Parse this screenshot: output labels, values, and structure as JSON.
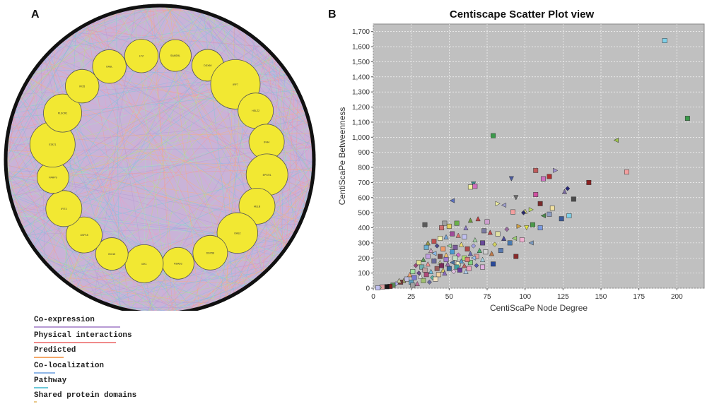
{
  "panels": {
    "a": "A",
    "b": "B"
  },
  "network": {
    "node_fill": "#f2e832",
    "edge_background": "#c9b3d8",
    "ring_color": "#111111",
    "edge_palette": [
      "#b79ad4",
      "#f19a9a",
      "#f4b27a",
      "#8fb6e8",
      "#7cc8d8",
      "#b8d98c",
      "#e8a0c8",
      "#a8e0c0"
    ],
    "genes": [
      {
        "label": "LYZ",
        "rel_size": 0.55
      },
      {
        "label": "SAMD9L",
        "rel_size": 0.5
      },
      {
        "label": "DDX60",
        "rel_size": 0.5
      },
      {
        "label": "IRF7",
        "rel_size": 1.0
      },
      {
        "label": "HELZ2",
        "rel_size": 0.6
      },
      {
        "label": "IFI44",
        "rel_size": 0.6
      },
      {
        "label": "EPSTI1",
        "rel_size": 0.78
      },
      {
        "label": "HELB",
        "rel_size": 0.62
      },
      {
        "label": "OAS2",
        "rel_size": 0.75
      },
      {
        "label": "DDX58",
        "rel_size": 0.58
      },
      {
        "label": "RSAD2",
        "rel_size": 0.5
      },
      {
        "label": "MX1",
        "rel_size": 0.68
      },
      {
        "label": "ISG15",
        "rel_size": 0.52
      },
      {
        "label": "USP18",
        "rel_size": 0.62
      },
      {
        "label": "IFIT3",
        "rel_size": 0.62
      },
      {
        "label": "PARP9",
        "rel_size": 0.5
      },
      {
        "label": "STAT1",
        "rel_size": 0.88
      },
      {
        "label": "PLSCR1",
        "rel_size": 0.68
      },
      {
        "label": "IFI35",
        "rel_size": 0.55
      },
      {
        "label": "OASL",
        "rel_size": 0.55
      }
    ]
  },
  "legend": [
    {
      "label": "Co-expression",
      "color": "#b79ad4"
    },
    {
      "label": "Physical interactions",
      "color": "#f08a8a"
    },
    {
      "label": "Predicted",
      "color": "#f4a868"
    },
    {
      "label": "Co-localization",
      "color": "#8fb6e8"
    },
    {
      "label": "Pathway",
      "color": "#6cc8d8"
    },
    {
      "label": "Shared protein domains",
      "color": "#e8c88a"
    }
  ],
  "chart_data": {
    "type": "scatter",
    "title": "Centiscape Scatter Plot view",
    "xlabel": "CentiScaPe Node Degree",
    "ylabel": "CentiScaPe Betweenness",
    "xlim": [
      0,
      218
    ],
    "ylim": [
      0,
      1750
    ],
    "xticks": [
      0,
      25,
      50,
      75,
      100,
      125,
      150,
      175,
      200
    ],
    "yticks": [
      0,
      100,
      200,
      300,
      400,
      500,
      600,
      700,
      800,
      900,
      1000,
      1100,
      1200,
      1300,
      1400,
      1500,
      1600,
      1700
    ],
    "xtick_labels": [
      "0",
      "25",
      "50",
      "75",
      "100",
      "125",
      "150",
      "175",
      "200"
    ],
    "ytick_labels": [
      "0",
      "100",
      "200",
      "300",
      "400",
      "500",
      "600",
      "700",
      "800",
      "900",
      "1,000",
      "1,100",
      "1,200",
      "1,300",
      "1,400",
      "1,500",
      "1,600",
      "1,700"
    ],
    "background": "#c0c0c0",
    "grid": true,
    "points": [
      {
        "x": 192,
        "y": 1640,
        "m": "s",
        "c": "#7fd0e8"
      },
      {
        "x": 207,
        "y": 1125,
        "m": "s",
        "c": "#3a9a4a"
      },
      {
        "x": 79,
        "y": 1010,
        "m": "s",
        "c": "#3a9a4a"
      },
      {
        "x": 160,
        "y": 980,
        "m": "tl",
        "c": "#9ac04a"
      },
      {
        "x": 167,
        "y": 770,
        "m": "s",
        "c": "#f4a0a0"
      },
      {
        "x": 107,
        "y": 780,
        "m": "s",
        "c": "#c05a5a"
      },
      {
        "x": 120,
        "y": 780,
        "m": "tr",
        "c": "#a090d0"
      },
      {
        "x": 112,
        "y": 725,
        "m": "s",
        "c": "#d070c0"
      },
      {
        "x": 91,
        "y": 725,
        "m": "td",
        "c": "#4a5aa0"
      },
      {
        "x": 116,
        "y": 740,
        "m": "s",
        "c": "#b03030"
      },
      {
        "x": 142,
        "y": 700,
        "m": "s",
        "c": "#8a2020"
      },
      {
        "x": 66,
        "y": 690,
        "m": "td",
        "c": "#3a8a8a"
      },
      {
        "x": 64,
        "y": 670,
        "m": "s",
        "c": "#f0f0a0"
      },
      {
        "x": 67,
        "y": 675,
        "m": "s",
        "c": "#d070c0"
      },
      {
        "x": 128,
        "y": 660,
        "m": "d",
        "c": "#2a2a7a"
      },
      {
        "x": 126,
        "y": 640,
        "m": "tu",
        "c": "#7a6aa0"
      },
      {
        "x": 107,
        "y": 620,
        "m": "s",
        "c": "#d050a0"
      },
      {
        "x": 94,
        "y": 600,
        "m": "td",
        "c": "#6a6a6a"
      },
      {
        "x": 132,
        "y": 590,
        "m": "s",
        "c": "#4a4a4a"
      },
      {
        "x": 52,
        "y": 580,
        "m": "tl",
        "c": "#5a70c0"
      },
      {
        "x": 82,
        "y": 560,
        "m": "tr",
        "c": "#f0f0a0"
      },
      {
        "x": 86,
        "y": 550,
        "m": "tl",
        "c": "#a0a0d0"
      },
      {
        "x": 110,
        "y": 560,
        "m": "s",
        "c": "#7a2a2a"
      },
      {
        "x": 118,
        "y": 530,
        "m": "s",
        "c": "#f0e0a0"
      },
      {
        "x": 104,
        "y": 520,
        "m": "tr",
        "c": "#c0e060"
      },
      {
        "x": 100,
        "y": 510,
        "m": "tu",
        "c": "#e0e080"
      },
      {
        "x": 99,
        "y": 500,
        "m": "d",
        "c": "#2a2a6a"
      },
      {
        "x": 92,
        "y": 505,
        "m": "s",
        "c": "#f4a0a0"
      },
      {
        "x": 129,
        "y": 480,
        "m": "s",
        "c": "#7fd0e8"
      },
      {
        "x": 124,
        "y": 460,
        "m": "s",
        "c": "#3a5a9a"
      },
      {
        "x": 112,
        "y": 480,
        "m": "tl",
        "c": "#4a8a4a"
      },
      {
        "x": 116,
        "y": 490,
        "m": "s",
        "c": "#8a9ac0"
      },
      {
        "x": 69,
        "y": 460,
        "m": "tu",
        "c": "#c04040"
      },
      {
        "x": 64,
        "y": 450,
        "m": "tu",
        "c": "#6a9a3a"
      },
      {
        "x": 75,
        "y": 440,
        "m": "s",
        "c": "#d0a0d0"
      },
      {
        "x": 105,
        "y": 420,
        "m": "s",
        "c": "#4a9a4a"
      },
      {
        "x": 96,
        "y": 410,
        "m": "tr",
        "c": "#d0a040"
      },
      {
        "x": 101,
        "y": 400,
        "m": "td",
        "c": "#e0e040"
      },
      {
        "x": 88,
        "y": 390,
        "m": "d",
        "c": "#9a6aa0"
      },
      {
        "x": 110,
        "y": 400,
        "m": "s",
        "c": "#7a9ae0"
      },
      {
        "x": 34,
        "y": 420,
        "m": "s",
        "c": "#5a5a5a"
      },
      {
        "x": 47,
        "y": 430,
        "m": "s",
        "c": "#a0a0a0"
      },
      {
        "x": 45,
        "y": 400,
        "m": "s",
        "c": "#d07070"
      },
      {
        "x": 50,
        "y": 410,
        "m": "s",
        "c": "#e0d060"
      },
      {
        "x": 55,
        "y": 430,
        "m": "s",
        "c": "#6ab04a"
      },
      {
        "x": 61,
        "y": 400,
        "m": "tu",
        "c": "#8a7ac0"
      },
      {
        "x": 73,
        "y": 380,
        "m": "s",
        "c": "#7a7aa0"
      },
      {
        "x": 77,
        "y": 370,
        "m": "tu",
        "c": "#c04a4a"
      },
      {
        "x": 82,
        "y": 360,
        "m": "s",
        "c": "#e0e0a0"
      },
      {
        "x": 86,
        "y": 330,
        "m": "tu",
        "c": "#4a4a9a"
      },
      {
        "x": 93,
        "y": 330,
        "m": "tl",
        "c": "#9ad070"
      },
      {
        "x": 98,
        "y": 320,
        "m": "s",
        "c": "#f0b0d0"
      },
      {
        "x": 104,
        "y": 300,
        "m": "tl",
        "c": "#7a9ac0"
      },
      {
        "x": 90,
        "y": 300,
        "m": "s",
        "c": "#4a7ab0"
      },
      {
        "x": 80,
        "y": 290,
        "m": "d",
        "c": "#d0d060"
      },
      {
        "x": 72,
        "y": 300,
        "m": "s",
        "c": "#6a4a9a"
      },
      {
        "x": 67,
        "y": 320,
        "m": "tu",
        "c": "#a0d0a0"
      },
      {
        "x": 60,
        "y": 340,
        "m": "s",
        "c": "#c0c0f0"
      },
      {
        "x": 56,
        "y": 350,
        "m": "tu",
        "c": "#e07070"
      },
      {
        "x": 52,
        "y": 360,
        "m": "s",
        "c": "#a04a9a"
      },
      {
        "x": 48,
        "y": 340,
        "m": "tu",
        "c": "#70a0d0"
      },
      {
        "x": 44,
        "y": 330,
        "m": "s",
        "c": "#f0f0b0"
      },
      {
        "x": 40,
        "y": 310,
        "m": "s",
        "c": "#c05050"
      },
      {
        "x": 36,
        "y": 300,
        "m": "tu",
        "c": "#9a9a4a"
      },
      {
        "x": 35,
        "y": 270,
        "m": "s",
        "c": "#6ab0d0"
      },
      {
        "x": 38,
        "y": 250,
        "m": "tu",
        "c": "#d0a0c0"
      },
      {
        "x": 42,
        "y": 280,
        "m": "d",
        "c": "#4a4a8a"
      },
      {
        "x": 46,
        "y": 260,
        "m": "s",
        "c": "#f09a6a"
      },
      {
        "x": 50,
        "y": 280,
        "m": "tl",
        "c": "#9ad09a"
      },
      {
        "x": 54,
        "y": 270,
        "m": "s",
        "c": "#7a5a9a"
      },
      {
        "x": 58,
        "y": 290,
        "m": "tu",
        "c": "#f0e070"
      },
      {
        "x": 62,
        "y": 260,
        "m": "s",
        "c": "#b04a4a"
      },
      {
        "x": 66,
        "y": 280,
        "m": "d",
        "c": "#a0a0e0"
      },
      {
        "x": 70,
        "y": 250,
        "m": "tu",
        "c": "#4ab070"
      },
      {
        "x": 74,
        "y": 240,
        "m": "s",
        "c": "#d0d0d0"
      },
      {
        "x": 78,
        "y": 230,
        "m": "tu",
        "c": "#c07a4a"
      },
      {
        "x": 84,
        "y": 250,
        "m": "s",
        "c": "#5a7ab0"
      },
      {
        "x": 94,
        "y": 210,
        "m": "s",
        "c": "#8a2a2a"
      },
      {
        "x": 79,
        "y": 160,
        "m": "s",
        "c": "#2a4a9a"
      },
      {
        "x": 72,
        "y": 190,
        "m": "tu",
        "c": "#a0d0e0"
      },
      {
        "x": 68,
        "y": 210,
        "m": "s",
        "c": "#e0a0a0"
      },
      {
        "x": 64,
        "y": 230,
        "m": "tu",
        "c": "#6a6ab0"
      },
      {
        "x": 60,
        "y": 200,
        "m": "s",
        "c": "#b0e070"
      },
      {
        "x": 56,
        "y": 220,
        "m": "d",
        "c": "#d06ad0"
      },
      {
        "x": 52,
        "y": 240,
        "m": "s",
        "c": "#4a9ad0"
      },
      {
        "x": 48,
        "y": 220,
        "m": "tu",
        "c": "#f0c070"
      },
      {
        "x": 44,
        "y": 210,
        "m": "s",
        "c": "#7a4a4a"
      },
      {
        "x": 40,
        "y": 230,
        "m": "tl",
        "c": "#90c0f0"
      },
      {
        "x": 36,
        "y": 210,
        "m": "s",
        "c": "#c0a0e0"
      },
      {
        "x": 33,
        "y": 190,
        "m": "tu",
        "c": "#5a9a5a"
      },
      {
        "x": 30,
        "y": 170,
        "m": "s",
        "c": "#e0e090"
      },
      {
        "x": 28,
        "y": 150,
        "m": "d",
        "c": "#9a4a7a"
      },
      {
        "x": 32,
        "y": 140,
        "m": "s",
        "c": "#70b0b0"
      },
      {
        "x": 36,
        "y": 160,
        "m": "tu",
        "c": "#f09090"
      },
      {
        "x": 40,
        "y": 180,
        "m": "s",
        "c": "#6a6a9a"
      },
      {
        "x": 44,
        "y": 170,
        "m": "tu",
        "c": "#d0e0a0"
      },
      {
        "x": 48,
        "y": 190,
        "m": "s",
        "c": "#a07ad0"
      },
      {
        "x": 52,
        "y": 170,
        "m": "tl",
        "c": "#4a70a0"
      },
      {
        "x": 56,
        "y": 160,
        "m": "s",
        "c": "#f0f0c0"
      },
      {
        "x": 60,
        "y": 150,
        "m": "tu",
        "c": "#c06060"
      },
      {
        "x": 64,
        "y": 170,
        "m": "s",
        "c": "#80d080"
      },
      {
        "x": 68,
        "y": 150,
        "m": "d",
        "c": "#5a5ab0"
      },
      {
        "x": 72,
        "y": 140,
        "m": "s",
        "c": "#e0b0e0"
      },
      {
        "x": 50,
        "y": 130,
        "m": "s",
        "c": "#3a6aa0"
      },
      {
        "x": 46,
        "y": 120,
        "m": "tu",
        "c": "#d0c060"
      },
      {
        "x": 42,
        "y": 130,
        "m": "s",
        "c": "#9a5a5a"
      },
      {
        "x": 38,
        "y": 110,
        "m": "tu",
        "c": "#70c0e0"
      },
      {
        "x": 34,
        "y": 120,
        "m": "s",
        "c": "#c0a0a0"
      },
      {
        "x": 30,
        "y": 100,
        "m": "d",
        "c": "#6a4a8a"
      },
      {
        "x": 26,
        "y": 110,
        "m": "s",
        "c": "#a0e0a0"
      },
      {
        "x": 24,
        "y": 90,
        "m": "tu",
        "c": "#f0a070"
      },
      {
        "x": 27,
        "y": 70,
        "m": "s",
        "c": "#7a7ad0"
      },
      {
        "x": 31,
        "y": 80,
        "m": "tu",
        "c": "#e0e0e0"
      },
      {
        "x": 35,
        "y": 90,
        "m": "s",
        "c": "#b04a7a"
      },
      {
        "x": 39,
        "y": 70,
        "m": "d",
        "c": "#5ab0a0"
      },
      {
        "x": 43,
        "y": 90,
        "m": "s",
        "c": "#f0d0a0"
      },
      {
        "x": 47,
        "y": 100,
        "m": "tu",
        "c": "#8a6ac0"
      },
      {
        "x": 22,
        "y": 60,
        "m": "s",
        "c": "#c0c0e0"
      },
      {
        "x": 20,
        "y": 50,
        "m": "tu",
        "c": "#9a9a6a"
      },
      {
        "x": 18,
        "y": 40,
        "m": "s",
        "c": "#7a3a3a"
      },
      {
        "x": 15,
        "y": 30,
        "m": "d",
        "c": "#b0b0f0"
      },
      {
        "x": 13,
        "y": 20,
        "m": "s",
        "c": "#5a8a5a"
      },
      {
        "x": 11,
        "y": 12,
        "m": "s",
        "c": "#8a1a1a"
      },
      {
        "x": 9,
        "y": 10,
        "m": "s",
        "c": "#1a1a1a"
      },
      {
        "x": 6,
        "y": 8,
        "m": "s",
        "c": "#e0a0a0"
      },
      {
        "x": 17,
        "y": 50,
        "m": "tu",
        "c": "#d0d0a0"
      },
      {
        "x": 25,
        "y": 40,
        "m": "s",
        "c": "#60a0c0"
      },
      {
        "x": 29,
        "y": 30,
        "m": "tu",
        "c": "#c070a0"
      },
      {
        "x": 33,
        "y": 50,
        "m": "s",
        "c": "#a0c070"
      },
      {
        "x": 37,
        "y": 40,
        "m": "d",
        "c": "#6a6aa0"
      },
      {
        "x": 41,
        "y": 60,
        "m": "s",
        "c": "#f0e0c0"
      },
      {
        "x": 45,
        "y": 150,
        "m": "s",
        "c": "#7a2a5a"
      },
      {
        "x": 58,
        "y": 180,
        "m": "tu",
        "c": "#5aa0d0"
      },
      {
        "x": 62,
        "y": 190,
        "m": "s",
        "c": "#e07a7a"
      },
      {
        "x": 66,
        "y": 200,
        "m": "tl",
        "c": "#9ac0f0"
      },
      {
        "x": 54,
        "y": 200,
        "m": "s",
        "c": "#c0e0c0"
      },
      {
        "x": 49,
        "y": 160,
        "m": "tu",
        "c": "#9a70b0"
      },
      {
        "x": 55,
        "y": 140,
        "m": "s",
        "c": "#40a0a0"
      },
      {
        "x": 53,
        "y": 110,
        "m": "d",
        "c": "#e0c0e0"
      },
      {
        "x": 57,
        "y": 120,
        "m": "s",
        "c": "#6a3a9a"
      },
      {
        "x": 61,
        "y": 110,
        "m": "tu",
        "c": "#b0d0f0"
      },
      {
        "x": 63,
        "y": 130,
        "m": "s",
        "c": "#f0a0c0"
      },
      {
        "x": 26,
        "y": 20,
        "m": "s",
        "c": "#a0a0a0"
      },
      {
        "x": 4,
        "y": 4,
        "m": "d",
        "c": "#90d090"
      },
      {
        "x": 3,
        "y": 2,
        "m": "s",
        "c": "#c0c0f0"
      }
    ]
  }
}
